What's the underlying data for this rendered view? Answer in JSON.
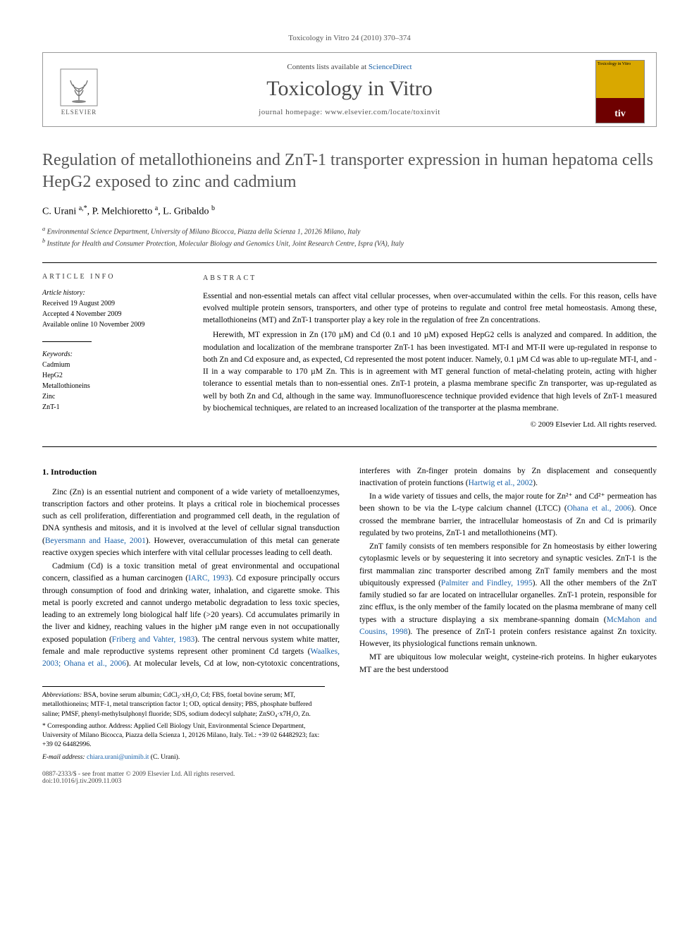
{
  "running_head": "Toxicology in Vitro 24 (2010) 370–374",
  "header": {
    "contents_prefix": "Contents lists available at ",
    "contents_link": "ScienceDirect",
    "journal_name": "Toxicology in Vitro",
    "homepage_prefix": "journal homepage: ",
    "homepage_url": "www.elsevier.com/locate/toxinvit",
    "publisher_logo_text": "ELSEVIER",
    "cover_title": "Toxicology in Vitro",
    "cover_badge": "tiv"
  },
  "article": {
    "title": "Regulation of metallothioneins and ZnT-1 transporter expression in human hepatoma cells HepG2 exposed to zinc and cadmium",
    "authors_html": "C. Urani <sup>a,*</sup>, P. Melchioretto <sup>a</sup>, L. Gribaldo <sup>b</sup>",
    "affiliations": [
      "a Environmental Science Department, University of Milano Bicocca, Piazza della Scienza 1, 20126 Milano, Italy",
      "b Institute for Health and Consumer Protection, Molecular Biology and Genomics Unit, Joint Research Centre, Ispra (VA), Italy"
    ]
  },
  "info": {
    "heading": "article info",
    "history_label": "Article history:",
    "history": [
      "Received 19 August 2009",
      "Accepted 4 November 2009",
      "Available online 10 November 2009"
    ],
    "keywords_label": "Keywords:",
    "keywords": [
      "Cadmium",
      "HepG2",
      "Metallothioneins",
      "Zinc",
      "ZnT-1"
    ]
  },
  "abstract": {
    "heading": "abstract",
    "p1": "Essential and non-essential metals can affect vital cellular processes, when over-accumulated within the cells. For this reason, cells have evolved multiple protein sensors, transporters, and other type of proteins to regulate and control free metal homeostasis. Among these, metallothioneins (MT) and ZnT-1 transporter play a key role in the regulation of free Zn concentrations.",
    "p2": "Herewith, MT expression in Zn (170 µM) and Cd (0.1 and 10 µM) exposed HepG2 cells is analyzed and compared. In addition, the modulation and localization of the membrane transporter ZnT-1 has been investigated. MT-I and MT-II were up-regulated in response to both Zn and Cd exposure and, as expected, Cd represented the most potent inducer. Namely, 0.1 µM Cd was able to up-regulate MT-I, and -II in a way comparable to 170 µM Zn. This is in agreement with MT general function of metal-chelating protein, acting with higher tolerance to essential metals than to non-essential ones. ZnT-1 protein, a plasma membrane specific Zn transporter, was up-regulated as well by both Zn and Cd, although in the same way. Immunofluorescence technique provided evidence that high levels of ZnT-1 measured by biochemical techniques, are related to an increased localization of the transporter at the plasma membrane.",
    "copyright": "© 2009 Elsevier Ltd. All rights reserved."
  },
  "body": {
    "section1_heading": "1. Introduction",
    "p1a": "Zinc (Zn) is an essential nutrient and component of a wide variety of metalloenzymes, transcription factors and other proteins. It plays a critical role in biochemical processes such as cell proliferation, differentiation and programmed cell death, in the regulation of DNA synthesis and mitosis, and it is involved at the level of cellular signal transduction (",
    "p1_ref1": "Beyersmann and Haase, 2001",
    "p1b": "). However, overaccumulation of this metal can generate reactive oxygen species which interfere with vital cellular processes leading to cell death.",
    "p2a": "Cadmium (Cd) is a toxic transition metal of great environmental and occupational concern, classified as a human carcinogen (",
    "p2_ref1": "IARC, 1993",
    "p2b": "). Cd exposure principally occurs through consumption of food and drinking water, inhalation, and cigarette smoke. This metal is poorly excreted and cannot undergo metabolic degradation to less toxic species, leading to an extremely long biological half life (>20 years). Cd accumulates primarily in the liver and kidney, reaching values in the higher µM range even in not occupationally exposed population (",
    "p2_ref2": "Friberg and Vahter, 1983",
    "p2c": "). The central nervous system white matter, female and male reproductive systems represent other prominent Cd targets (",
    "p2_ref3": "Waalkes, 2003; Ohana et al., 2006",
    "p2d": "). At molecular levels, Cd at low, non-cytotoxic concentrations, interferes with Zn-finger protein domains by Zn displacement and consequently inactivation of protein functions (",
    "p2_ref4": "Hartwig et al., 2002",
    "p2e": ").",
    "p3a": "In a wide variety of tissues and cells, the major route for Zn²⁺ and Cd²⁺ permeation has been shown to be via the L-type calcium channel (LTCC) (",
    "p3_ref1": "Ohana et al., 2006",
    "p3b": "). Once crossed the membrane barrier, the intracellular homeostasis of Zn and Cd is primarily regulated by two proteins, ZnT-1 and metallothioneins (MT).",
    "p4a": "ZnT family consists of ten members responsible for Zn homeostasis by either lowering cytoplasmic levels or by sequestering it into secretory and synaptic vesicles. ZnT-1 is the first mammalian zinc transporter described among ZnT family members and the most ubiquitously expressed (",
    "p4_ref1": "Palmiter and Findley, 1995",
    "p4b": "). All the other members of the ZnT family studied so far are located on intracellular organelles. ZnT-1 protein, responsible for zinc efflux, is the only member of the family located on the plasma membrane of many cell types with a structure displaying a six membrane-spanning domain (",
    "p4_ref2": "McMahon and Cousins, 1998",
    "p4c": "). The presence of ZnT-1 protein confers resistance against Zn toxicity. However, its physiological functions remain unknown.",
    "p5": "MT are ubiquitous low molecular weight, cysteine-rich proteins. In higher eukaryotes MT are the best understood"
  },
  "footnotes": {
    "abbrev_label": "Abbreviations:",
    "abbrev": " BSA, bovine serum albumin; CdCl₂·xH₂O, Cd; FBS, foetal bovine serum; MT, metallothioneins; MTF-1, metal transcription factor 1; OD, optical density; PBS, phosphate buffered saline; PMSF, phenyl-methylsulphonyl fluoride; SDS, sodium dodecyl sulphate; ZnSO₄·x7H₂O, Zn.",
    "corr_label": "* Corresponding author.",
    "corr": " Address: Applied Cell Biology Unit, Environmental Science Department, University of Milano Bicocca, Piazza della Scienza 1, 20126 Milano, Italy. Tel.: +39 02 64482923; fax: +39 02 64482996.",
    "email_label": "E-mail address:",
    "email": " chiara.urani@unimib.it",
    "email_who": " (C. Urani)."
  },
  "bottom": {
    "left1": "0887-2333/$ - see front matter © 2009 Elsevier Ltd. All rights reserved.",
    "left2": "doi:10.1016/j.tiv.2009.11.003"
  },
  "colors": {
    "link": "#1860a8",
    "title_gray": "#555555",
    "rule": "#000000"
  }
}
